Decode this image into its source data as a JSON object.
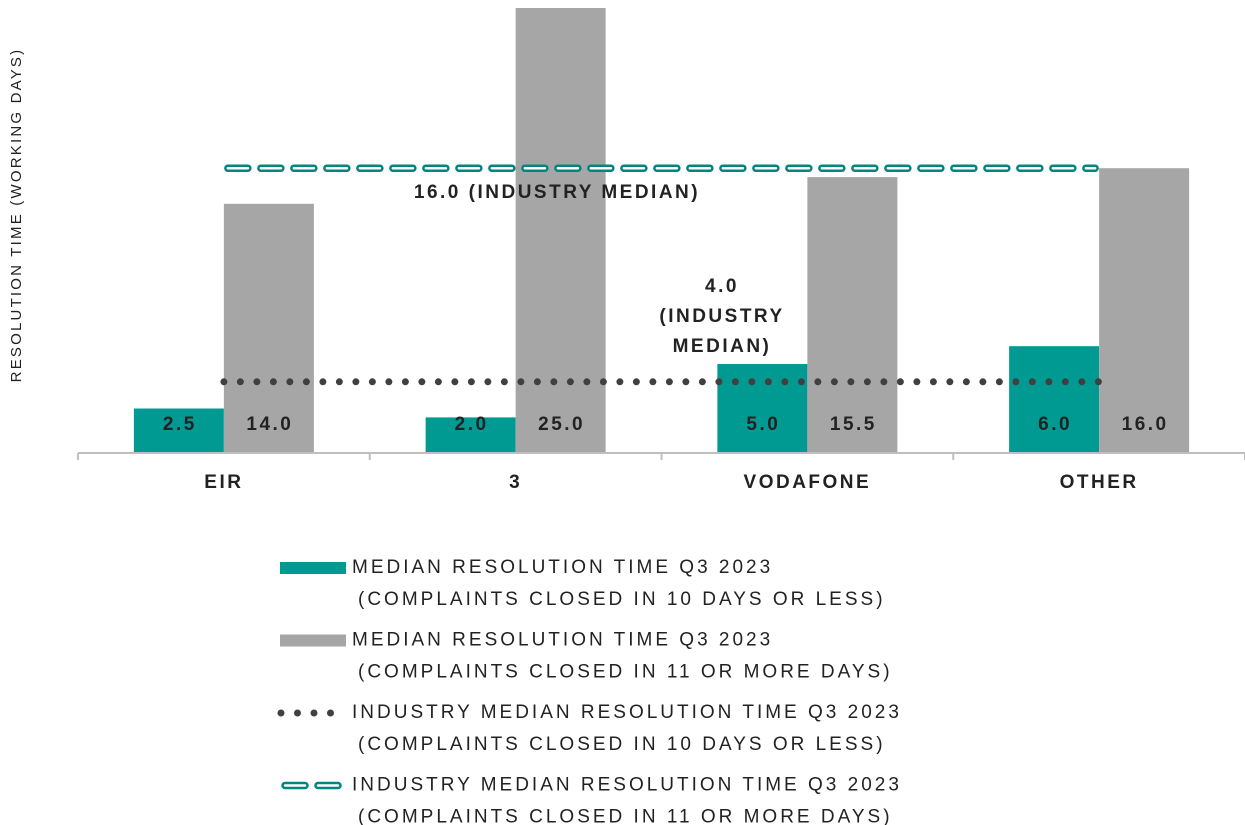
{
  "chart_data": {
    "type": "bar",
    "y_label": "RESOLUTION TIME (WORKING DAYS)",
    "categories": [
      "EIR",
      "3",
      "VODAFONE",
      "OTHER"
    ],
    "ylim": [
      0,
      25
    ],
    "series": [
      {
        "name": "MEDIAN RESOLUTION TIME Q3 2023\n(COMPLAINTS CLOSED IN 10 DAYS OR LESS)",
        "color": "#009a93",
        "values": [
          2.5,
          2.0,
          5.0,
          6.0
        ],
        "value_labels": [
          "2.5",
          "2.0",
          "5.0",
          "6.0"
        ]
      },
      {
        "name": "MEDIAN RESOLUTION TIME Q3 2023\n(COMPLAINTS CLOSED IN 11 OR MORE DAYS)",
        "color": "#a6a6a6",
        "values": [
          14.0,
          25.0,
          15.5,
          16.0
        ],
        "value_labels": [
          "14.0",
          "25.0",
          "15.5",
          "16.0"
        ]
      }
    ],
    "reference_lines": [
      {
        "name": "INDUSTRY MEDIAN RESOLUTION TIME Q3 2023\n(COMPLAINTS CLOSED IN 10 DAYS OR LESS)",
        "color": "#404040",
        "style": "dotted",
        "value": 4.0,
        "label": "4.0\n(INDUSTRY\nMEDIAN)"
      },
      {
        "name": "INDUSTRY MEDIAN RESOLUTION TIME Q3 2023\n(COMPLAINTS CLOSED IN 11 OR MORE DAYS)",
        "color": "#00857f",
        "style": "dashed",
        "value": 16.0,
        "label": "16.0 (INDUSTRY MEDIAN)"
      }
    ]
  }
}
